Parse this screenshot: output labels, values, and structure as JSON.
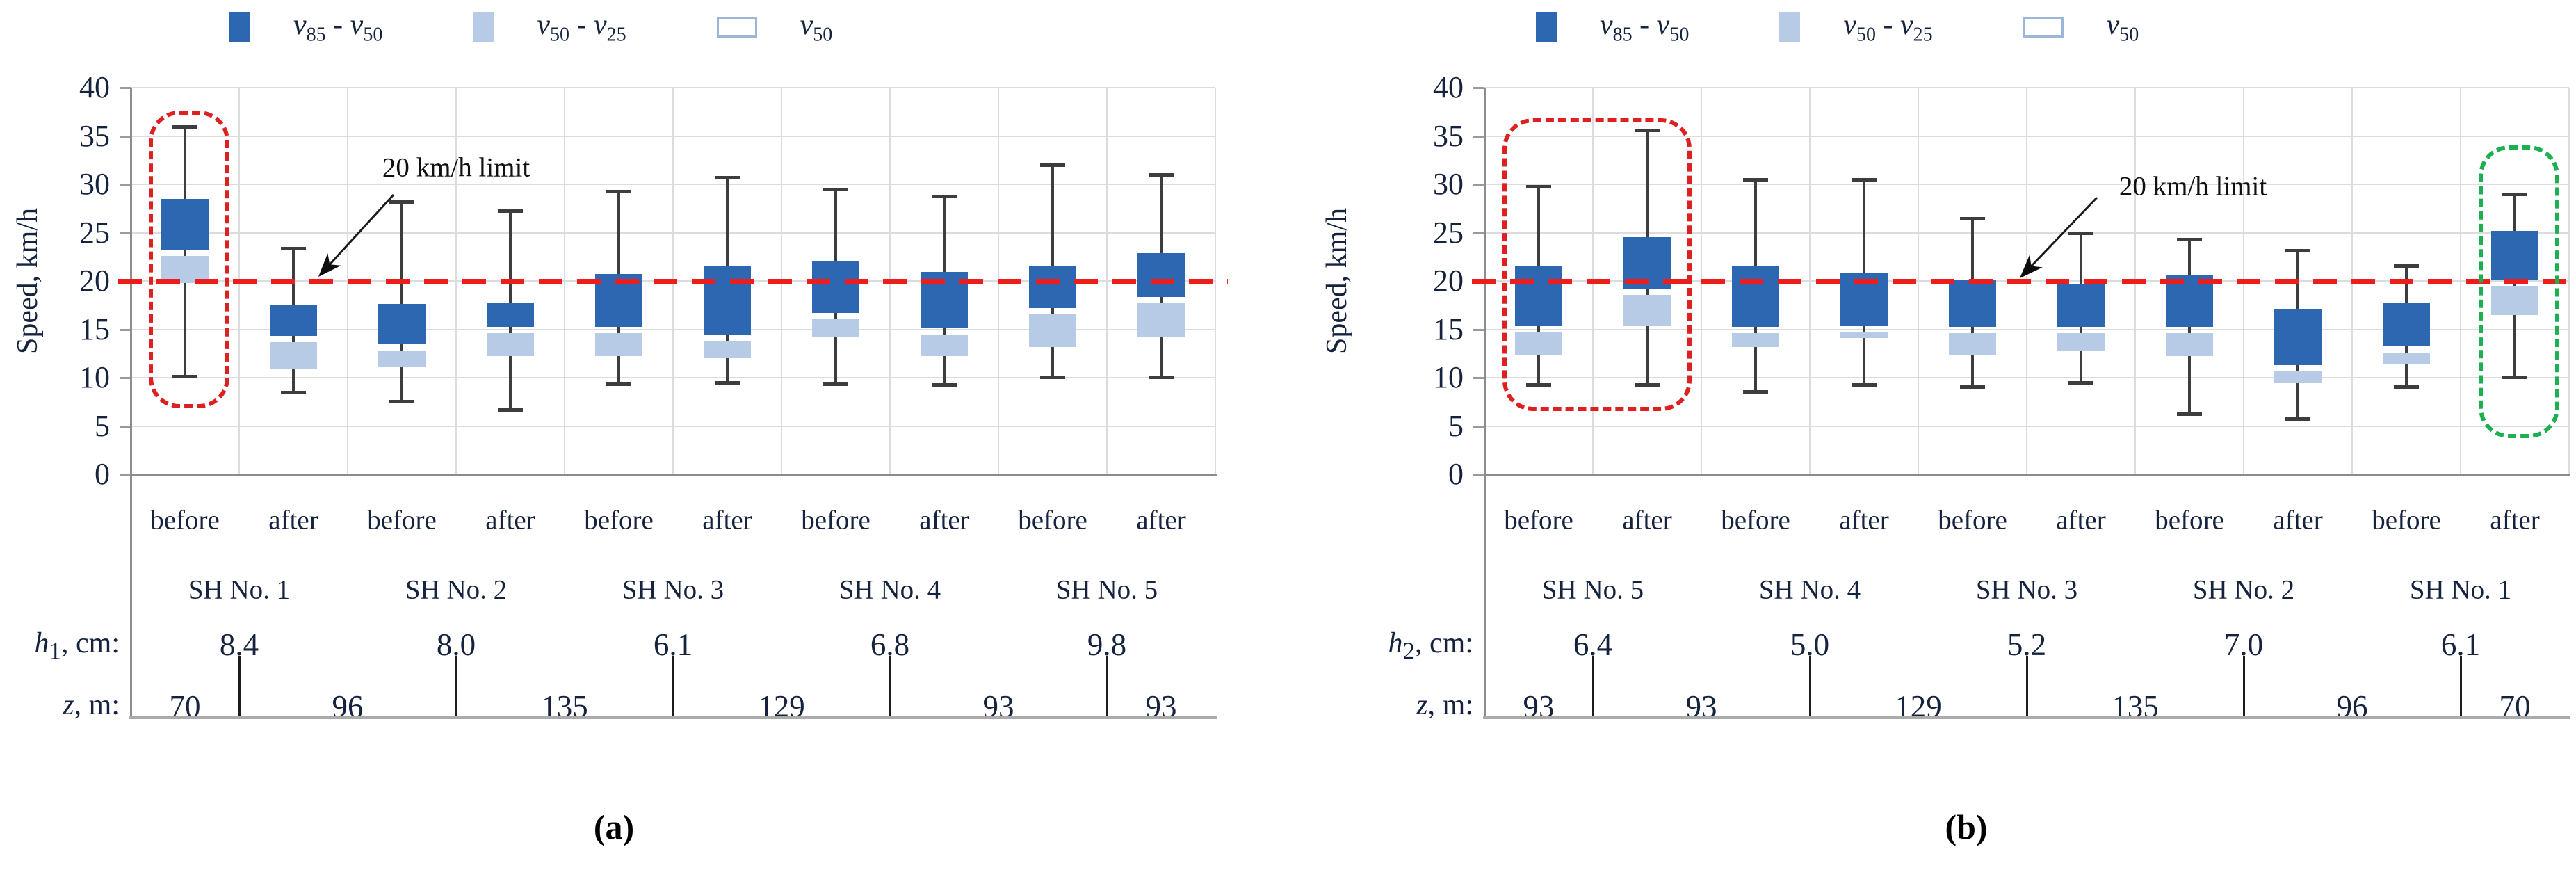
{
  "figure": {
    "speed_axis_label": "Speed, km/h",
    "annotation_label": "20 km/h limit",
    "captions": [
      "(a)",
      "(b)"
    ],
    "colors": {
      "box_dark": "#2d67b2",
      "box_light": "#b7cbe7",
      "reference_red": "#ee1d1d",
      "highlight_red": "#dd2020",
      "highlight_green": "#1cb050",
      "whisker": "#3d3d3d",
      "gridline": "#dcdcdc",
      "axis": "#8c8c8c",
      "text": "#16233f"
    },
    "legend_items": [
      {
        "name": "v85-v50",
        "swatch": "dark",
        "base1": "v",
        "sub1": "85",
        "op": " - ",
        "base2": "v",
        "sub2": "50"
      },
      {
        "name": "v50-v25",
        "swatch": "light",
        "base1": "v",
        "sub1": "50",
        "op": " - ",
        "base2": "v",
        "sub2": "25"
      },
      {
        "name": "v50",
        "swatch": "outline",
        "base1": "v",
        "sub1": "50",
        "op": "",
        "base2": "",
        "sub2": ""
      }
    ]
  },
  "chart_data": [
    {
      "type": "boxplot",
      "caption": "(a)",
      "ylabel": "Speed, km/h",
      "ylim": [
        0,
        40
      ],
      "yticks": [
        "40",
        "35",
        "30",
        "25",
        "20",
        "15",
        "10",
        "5",
        "0"
      ],
      "grid": true,
      "legend": [
        "v85 - v50",
        "v50 - v25",
        "v50"
      ],
      "legend_position": "top",
      "reference_line": {
        "value": 20,
        "label": "20 km/h limit"
      },
      "phase_labels": [
        "before",
        "after",
        "before",
        "after",
        "before",
        "after",
        "before",
        "after",
        "before",
        "after"
      ],
      "groups": [
        {
          "label": "SH No. 1",
          "h": "8.4"
        },
        {
          "label": "SH No. 2",
          "h": "8.0"
        },
        {
          "label": "SH No. 3",
          "h": "6.1"
        },
        {
          "label": "SH No. 4",
          "h": "6.8"
        },
        {
          "label": "SH No. 5",
          "h": "9.8"
        }
      ],
      "h_row": {
        "symbol": "h",
        "sub": "1",
        "rest": ", cm:"
      },
      "z_row": {
        "symbol": "z",
        "sub": "",
        "rest": ", m:"
      },
      "z_values": [
        "70",
        "96",
        "135",
        "129",
        "93",
        "93"
      ],
      "series": [
        {
          "group": "SH No. 1",
          "phase": "before",
          "min": 10.1,
          "v25": 19.8,
          "v50": 22.9,
          "v85": 28.5,
          "max": 36.0
        },
        {
          "group": "SH No. 1",
          "phase": "after",
          "min": 8.4,
          "v25": 10.9,
          "v50": 14.0,
          "v85": 17.5,
          "max": 23.4
        },
        {
          "group": "SH No. 2",
          "phase": "before",
          "min": 7.5,
          "v25": 11.1,
          "v50": 13.1,
          "v85": 17.6,
          "max": 28.2
        },
        {
          "group": "SH No. 2",
          "phase": "after",
          "min": 6.6,
          "v25": 12.2,
          "v50": 14.9,
          "v85": 17.8,
          "max": 27.3
        },
        {
          "group": "SH No. 3",
          "phase": "before",
          "min": 9.3,
          "v25": 12.2,
          "v50": 14.9,
          "v85": 20.7,
          "max": 29.3
        },
        {
          "group": "SH No. 3",
          "phase": "after",
          "min": 9.4,
          "v25": 12.0,
          "v50": 14.1,
          "v85": 21.5,
          "max": 30.7
        },
        {
          "group": "SH No. 4",
          "phase": "before",
          "min": 9.3,
          "v25": 14.2,
          "v50": 16.4,
          "v85": 22.1,
          "max": 29.5
        },
        {
          "group": "SH No. 4",
          "phase": "after",
          "min": 9.2,
          "v25": 12.2,
          "v50": 14.8,
          "v85": 20.9,
          "max": 28.8
        },
        {
          "group": "SH No. 5",
          "phase": "before",
          "min": 10.0,
          "v25": 13.2,
          "v50": 16.9,
          "v85": 21.6,
          "max": 32.0
        },
        {
          "group": "SH No. 5",
          "phase": "after",
          "min": 10.0,
          "v25": 14.2,
          "v50": 18.0,
          "v85": 22.9,
          "max": 31.0
        }
      ],
      "highlights": [
        {
          "color": "red",
          "from_box": 0,
          "to_box": 0,
          "v_top": 37.6,
          "v_bottom": 7.7
        }
      ]
    },
    {
      "type": "boxplot",
      "caption": "(b)",
      "ylabel": "Speed, km/h",
      "ylim": [
        0,
        40
      ],
      "yticks": [
        "40",
        "35",
        "30",
        "25",
        "20",
        "15",
        "10",
        "5",
        "0"
      ],
      "grid": true,
      "legend": [
        "v85 - v50",
        "v50 - v25",
        "v50"
      ],
      "legend_position": "top",
      "reference_line": {
        "value": 20,
        "label": "20 km/h limit"
      },
      "phase_labels": [
        "before",
        "after",
        "before",
        "after",
        "before",
        "after",
        "before",
        "after",
        "before",
        "after"
      ],
      "groups": [
        {
          "label": "SH No. 5",
          "h": "6.4"
        },
        {
          "label": "SH No. 4",
          "h": "5.0"
        },
        {
          "label": "SH No. 3",
          "h": "5.2"
        },
        {
          "label": "SH No. 2",
          "h": "7.0"
        },
        {
          "label": "SH No. 1",
          "h": "6.1"
        }
      ],
      "h_row": {
        "symbol": "h",
        "sub": "2",
        "rest": ", cm:"
      },
      "z_row": {
        "symbol": "z",
        "sub": "",
        "rest": ", m:"
      },
      "z_values": [
        "93",
        "93",
        "129",
        "135",
        "96",
        "70"
      ],
      "series": [
        {
          "group": "SH No. 5",
          "phase": "before",
          "min": 9.2,
          "v25": 12.4,
          "v50": 15.0,
          "v85": 21.6,
          "max": 29.8
        },
        {
          "group": "SH No. 5",
          "phase": "after",
          "min": 9.2,
          "v25": 15.3,
          "v50": 18.9,
          "v85": 24.5,
          "max": 35.6
        },
        {
          "group": "SH No. 4",
          "phase": "before",
          "min": 8.5,
          "v25": 13.2,
          "v50": 14.9,
          "v85": 21.5,
          "max": 30.5
        },
        {
          "group": "SH No. 4",
          "phase": "after",
          "min": 9.2,
          "v25": 14.1,
          "v50": 15.0,
          "v85": 20.8,
          "max": 30.5
        },
        {
          "group": "SH No. 3",
          "phase": "before",
          "min": 9.0,
          "v25": 12.3,
          "v50": 14.9,
          "v85": 20.1,
          "max": 26.5
        },
        {
          "group": "SH No. 3",
          "phase": "after",
          "min": 9.4,
          "v25": 12.7,
          "v50": 14.9,
          "v85": 19.7,
          "max": 25.0
        },
        {
          "group": "SH No. 2",
          "phase": "before",
          "min": 6.2,
          "v25": 12.2,
          "v50": 14.9,
          "v85": 20.6,
          "max": 24.3
        },
        {
          "group": "SH No. 2",
          "phase": "after",
          "min": 5.7,
          "v25": 9.4,
          "v50": 11.0,
          "v85": 17.1,
          "max": 23.2
        },
        {
          "group": "SH No. 1",
          "phase": "before",
          "min": 9.0,
          "v25": 11.4,
          "v50": 12.9,
          "v85": 17.7,
          "max": 21.6
        },
        {
          "group": "SH No. 1",
          "phase": "after",
          "min": 10.0,
          "v25": 16.5,
          "v50": 19.8,
          "v85": 25.2,
          "max": 29.0
        }
      ],
      "highlights": [
        {
          "color": "red",
          "from_box": 0,
          "to_box": 1,
          "v_top": 36.8,
          "v_bottom": 7.4
        },
        {
          "color": "green",
          "from_box": 9,
          "to_box": 9,
          "v_top": 34.0,
          "v_bottom": 4.6
        }
      ]
    }
  ]
}
